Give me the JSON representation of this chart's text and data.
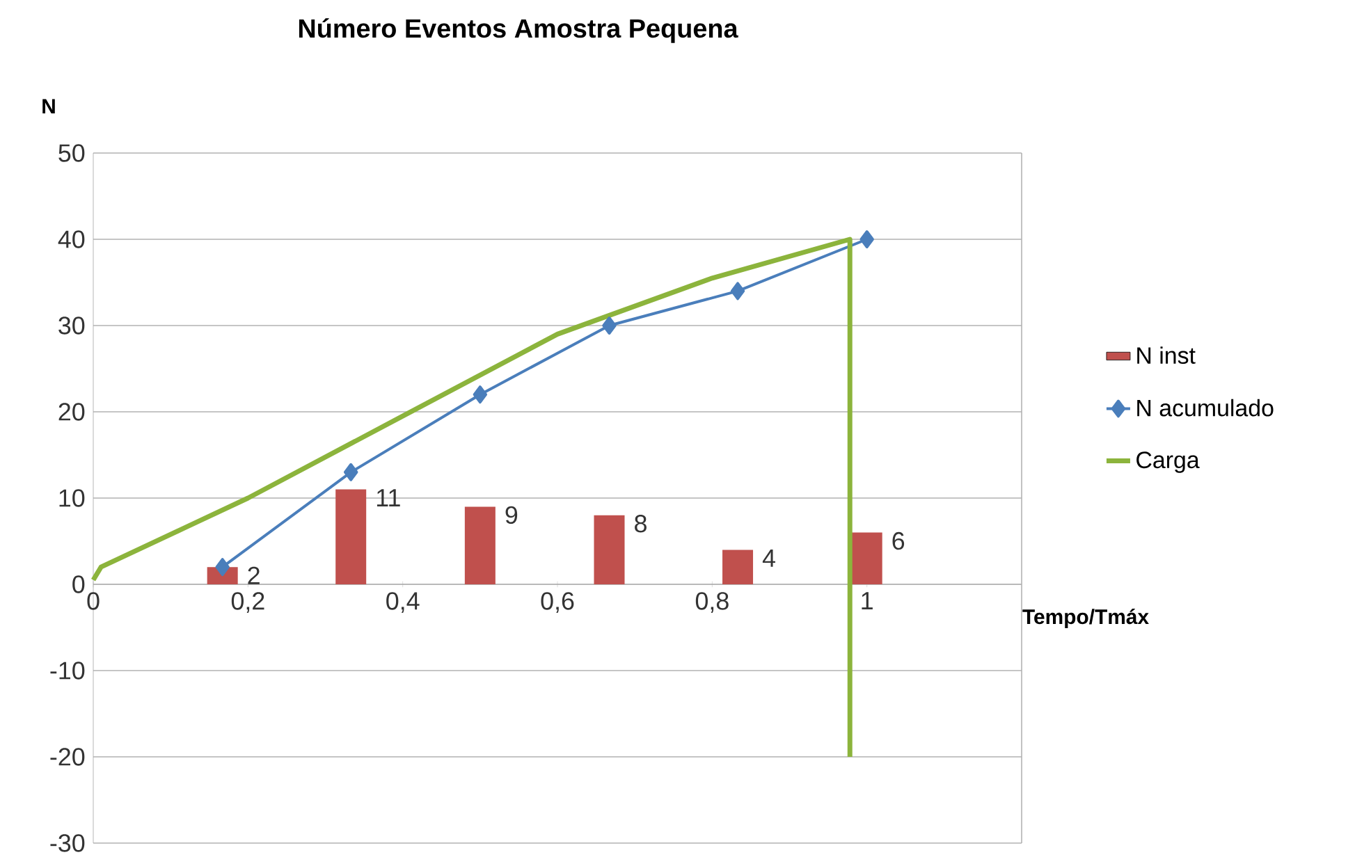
{
  "chart_data": {
    "type": "line",
    "title": "Número Eventos  Amostra Pequena",
    "xlabel": "Tempo/Tmáx",
    "ylabel": "N",
    "xlim": [
      0,
      1.2
    ],
    "ylim": [
      -30,
      50
    ],
    "xticks": [
      0,
      {
        "value": 0.2,
        "label": "0,2"
      },
      {
        "value": 0.4,
        "label": "0,4"
      },
      {
        "value": 0.6,
        "label": "0,6"
      },
      {
        "value": 0.8,
        "label": "0,8"
      },
      1
    ],
    "yticks": [
      -30,
      -20,
      -10,
      0,
      10,
      20,
      30,
      40,
      50
    ],
    "grid": "y",
    "legend": "right",
    "series": [
      {
        "name": "N inst",
        "type": "bar",
        "color": "#c0504d",
        "x": [
          0.167,
          0.333,
          0.5,
          0.667,
          0.833,
          1.0
        ],
        "values": [
          2,
          11,
          9,
          8,
          4,
          6
        ],
        "value_labels": [
          "2",
          "11",
          "9",
          "8",
          "4",
          "6"
        ]
      },
      {
        "name": "N acumulado",
        "color": "#4a7ebb",
        "marker": "diamond",
        "x": [
          0.167,
          0.333,
          0.5,
          0.667,
          0.833,
          1.0
        ],
        "values": [
          2,
          13,
          22,
          30,
          34,
          40
        ]
      },
      {
        "name": "Carga",
        "color": "#8cb43c",
        "marker": "none",
        "x": [
          0,
          0.01,
          0.2,
          0.4,
          0.6,
          0.8,
          0.978,
          0.978
        ],
        "values": [
          0.5,
          2,
          10,
          19.5,
          29,
          35.5,
          40,
          -20
        ]
      }
    ]
  }
}
